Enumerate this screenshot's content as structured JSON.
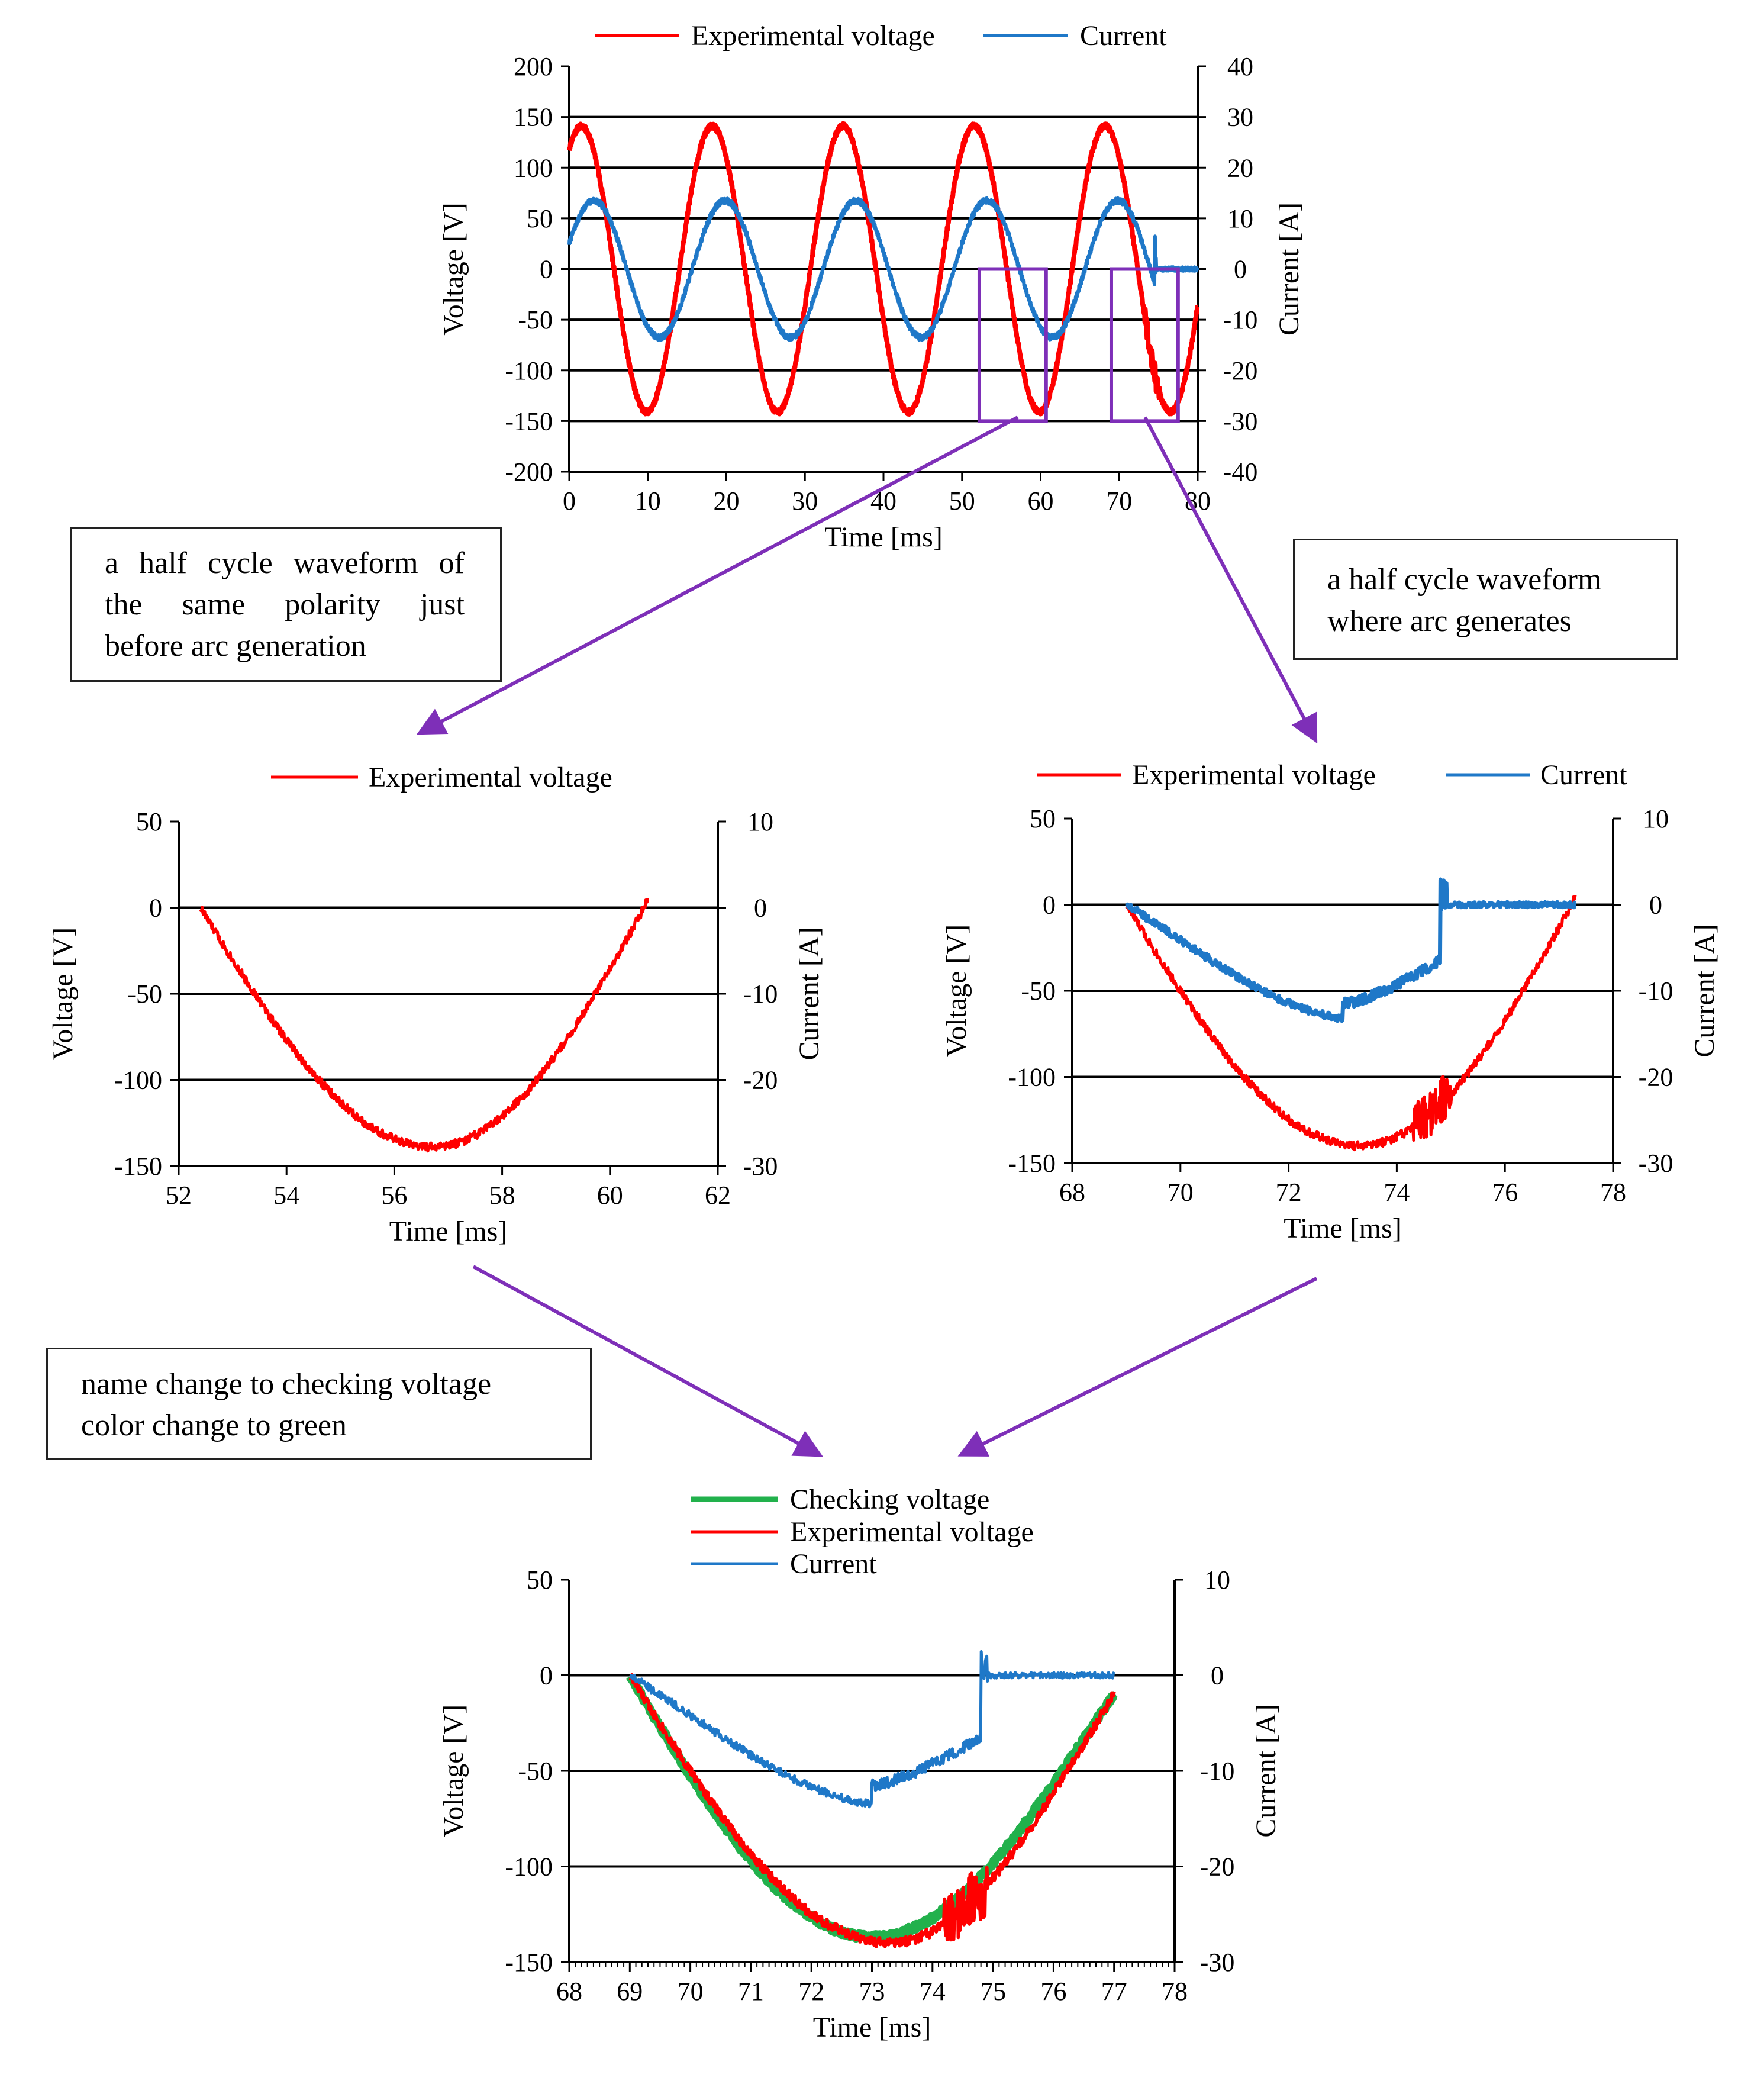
{
  "colors": {
    "voltage": "#ff0000",
    "current": "#1f78c8",
    "checking": "#22b14c",
    "arrow": "#7e2fb8",
    "grid": "#000000"
  },
  "annotations": {
    "before_arc_lines": [
      "a half cycle waveform of",
      "the same polarity just",
      "before arc generation"
    ],
    "arc_lines": [
      "a half cycle waveform",
      "where arc generates"
    ],
    "rename_lines": [
      "name change to checking voltage",
      "color change to green"
    ]
  },
  "chart_data": [
    {
      "id": "full",
      "type": "line",
      "legend": [
        {
          "label": "Experimental voltage",
          "series": "voltage"
        },
        {
          "label": "Current",
          "series": "current"
        }
      ],
      "xlabel": "Time [ms]",
      "ylabel": "Voltage [V]",
      "y2label": "Current [A]",
      "xlim": [
        0,
        80
      ],
      "ylim": [
        -200,
        200
      ],
      "y2lim": [
        -40,
        40
      ],
      "xticks": [
        0,
        10,
        20,
        30,
        40,
        50,
        60,
        70,
        80
      ],
      "yticks": [
        200,
        150,
        100,
        50,
        0,
        -50,
        -100,
        -150,
        -200
      ],
      "y2ticks": [
        40,
        30,
        20,
        10,
        0,
        -10,
        -20,
        -30,
        -40
      ],
      "gridlines": [
        150,
        100,
        50,
        0,
        -50,
        -100,
        -150
      ],
      "series": {
        "voltage": {
          "name": "Experimental voltage",
          "frequency_hz": 60,
          "amplitude_v": 141,
          "phase_deg": 57,
          "end_ms": 80
        },
        "current": {
          "name": "Current",
          "frequency_hz": 60,
          "amplitude_a": 13.5,
          "phase_deg": 22,
          "arc_ms": 74.5,
          "after_arc_a": 0,
          "end_ms": 80
        }
      },
      "highlight_boxes": [
        {
          "x_range": [
            52.2,
            60.7
          ],
          "y_range": [
            -150,
            0
          ]
        },
        {
          "x_range": [
            69,
            77.5
          ],
          "y_range": [
            -150,
            0
          ]
        }
      ]
    },
    {
      "id": "before-arc",
      "type": "line",
      "legend": [
        {
          "label": "Experimental voltage",
          "series": "voltage"
        }
      ],
      "xlabel": "Time [ms]",
      "ylabel": "Voltage [V]",
      "y2label": "Current [A]",
      "xlim": [
        52,
        62
      ],
      "ylim": [
        -150,
        50
      ],
      "y2lim": [
        -30,
        10
      ],
      "xticks": [
        52,
        54,
        56,
        58,
        60,
        62
      ],
      "yticks": [
        50,
        0,
        -50,
        -100,
        -150
      ],
      "y2ticks": [
        10,
        0,
        -10,
        -20,
        -30
      ],
      "gridlines": [
        0,
        -50,
        -100
      ],
      "series": {
        "voltage": {
          "name": "Experimental voltage",
          "start_ms": 52.4,
          "end_ms": 60.7,
          "min_v": -139,
          "min_ms": 56.7
        }
      }
    },
    {
      "id": "arc",
      "type": "line",
      "legend": [
        {
          "label": "Experimental voltage",
          "series": "voltage"
        },
        {
          "label": "Current",
          "series": "current"
        }
      ],
      "xlabel": "Time [ms]",
      "ylabel": "Voltage [V]",
      "y2label": "Current [A]",
      "xlim": [
        68,
        78
      ],
      "ylim": [
        -150,
        50
      ],
      "y2lim": [
        -30,
        10
      ],
      "xticks": [
        68,
        70,
        72,
        74,
        76,
        78
      ],
      "yticks": [
        50,
        0,
        -50,
        -100,
        -150
      ],
      "y2ticks": [
        10,
        0,
        -10,
        -20,
        -30
      ],
      "gridlines": [
        0,
        -50,
        -100
      ],
      "series": {
        "voltage": {
          "name": "Experimental voltage",
          "start_ms": 69.0,
          "end_ms": 77.3,
          "min_v": -140,
          "min_ms": 73.3,
          "noise_ms": [
            74.3,
            75.0
          ]
        },
        "current": {
          "name": "Current",
          "start_ms": 69.0,
          "min_a": -13.2,
          "min_ms": 73.0,
          "step_a": -11.5,
          "pre_extinction_a": -6.5,
          "extinction_ms": 74.8,
          "spike_a": 3.8,
          "end_ms": 77.3
        }
      }
    },
    {
      "id": "combined",
      "type": "line",
      "legend": [
        {
          "label": "Checking voltage",
          "series": "checking"
        },
        {
          "label": "Experimental voltage",
          "series": "voltage"
        },
        {
          "label": "Current",
          "series": "current"
        }
      ],
      "xlabel": "Time [ms]",
      "ylabel": "Voltage [V]",
      "y2label": "Current [A]",
      "xlim": [
        68,
        78
      ],
      "ylim": [
        -150,
        50
      ],
      "y2lim": [
        -30,
        10
      ],
      "xticks": [
        68,
        69,
        70,
        71,
        72,
        73,
        74,
        75,
        76,
        77,
        78
      ],
      "yticks": [
        50,
        0,
        -50,
        -100,
        -150
      ],
      "y2ticks": [
        10,
        0,
        -10,
        -20,
        -30
      ],
      "gridlines": [
        0,
        -50,
        -100
      ],
      "series": {
        "checking": {
          "name": "Checking voltage",
          "start_ms": 69.0,
          "end_ms": 77.0,
          "min_v": -137,
          "min_ms": 73.0,
          "end_v": -10
        },
        "voltage": {
          "name": "Experimental voltage",
          "start_ms": 69.0,
          "end_ms": 77.0,
          "min_v": -140,
          "min_ms": 73.3,
          "end_v": -10,
          "noise_ms": [
            74.2,
            74.9
          ]
        },
        "current": {
          "name": "Current",
          "start_ms": 69.0,
          "min_a": -13.5,
          "min_ms": 73.0,
          "step_a": -11.5,
          "pre_extinction_a": -6.5,
          "extinction_ms": 74.8,
          "spike_a": 3.8,
          "end_ms": 77.0
        }
      }
    }
  ]
}
